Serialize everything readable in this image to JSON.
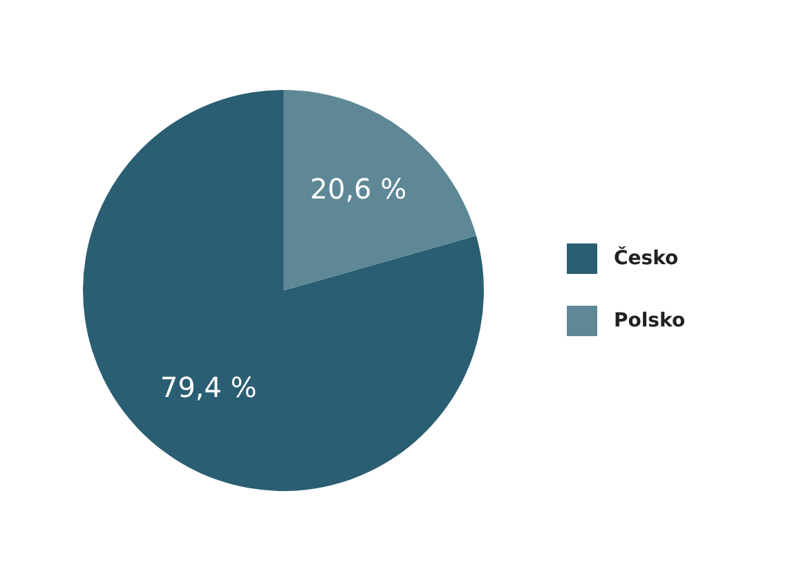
{
  "chart_data": {
    "type": "pie",
    "categories": [
      "Česko",
      "Polsko"
    ],
    "values": [
      79.4,
      20.6
    ],
    "colors": [
      "#2a5e72",
      "#5e8896"
    ],
    "value_labels": [
      "79,4 %",
      "20,6 %"
    ],
    "legend": "right"
  }
}
